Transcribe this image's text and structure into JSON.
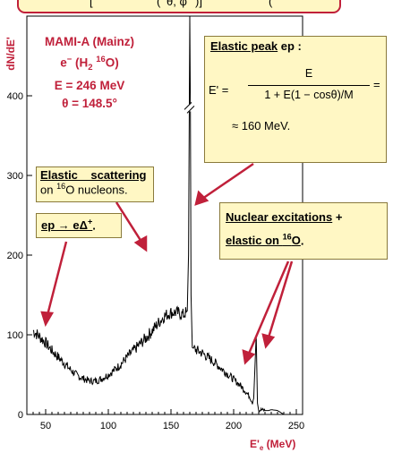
{
  "colors": {
    "red": "#c0203a",
    "box_fill": "#fff7c4",
    "box_border": "#8a7a3c",
    "curve": "#000000"
  },
  "top_banner": {
    "prefix": "[",
    "middle": "(",
    "body": "θ, φ",
    "close": ")]",
    "suffix": "("
  },
  "experiment": {
    "line1": "MAMI-A (Mainz)",
    "line2_a": "e",
    "line2_b": "−",
    "line2_c": " (H",
    "line2_d": "2",
    "line2_e": " ",
    "line2_f": "16",
    "line2_g": "O)",
    "line3": "E = 246 MeV",
    "line4": "θ = 148.5°"
  },
  "elastic_peak": {
    "title_u": "Elastic peak",
    "title_rest": " ep :",
    "lhs": "E' =",
    "numerator": "E",
    "denominator": "1 + E(1 − cosθ)/M",
    "eq_end": "=",
    "approx": "≈ 160 MeV."
  },
  "elastic_scattering": {
    "title_u": "Elastic    scattering",
    "line2_a": "on ",
    "line2_sup": "16",
    "line2_b": "O nucleons."
  },
  "delta_box": {
    "text": "ep → eΔ",
    "sup": "+",
    "end": "."
  },
  "nuclear_box": {
    "line1_u": "Nuclear excitations",
    "line1_rest": " +",
    "line2_u_a": "elastic on ",
    "line2_sup": "16",
    "line2_u_b": "O",
    "line2_rest": "."
  },
  "chart_data": {
    "type": "line",
    "ylabel": "dN/dE'",
    "xlabel_main": "E'",
    "xlabel_sub": "e",
    "xlabel_unit": " (MeV)",
    "xlim": [
      35,
      255
    ],
    "ylim": [
      0,
      500
    ],
    "xticks": [
      50,
      100,
      150,
      200,
      250
    ],
    "yticks": [
      0,
      100,
      200,
      300,
      400
    ],
    "axis_break_at": 165,
    "series": [
      {
        "x": [
          40,
          45,
          50,
          55,
          60,
          65,
          70,
          75,
          80,
          85,
          90,
          95,
          100,
          105,
          110,
          115,
          120,
          125,
          130,
          135,
          140,
          145,
          150,
          155,
          160,
          163,
          164,
          164.5,
          165,
          165.5,
          166,
          167,
          170,
          175,
          180,
          185,
          190,
          195,
          200,
          205,
          210,
          213,
          215,
          216,
          217,
          218,
          219,
          220,
          222,
          225,
          228,
          230,
          235,
          240
        ],
        "y": [
          105,
          98,
          90,
          80,
          72,
          64,
          56,
          49,
          45,
          42,
          42,
          45,
          50,
          56,
          63,
          72,
          80,
          88,
          96,
          105,
          115,
          124,
          128,
          128,
          125,
          130,
          200,
          350,
          500,
          380,
          150,
          84,
          81,
          77,
          71,
          65,
          58,
          51,
          44,
          37,
          28,
          22,
          15,
          20,
          60,
          100,
          14,
          5,
          6,
          5,
          5,
          6,
          5,
          0
        ]
      }
    ]
  }
}
